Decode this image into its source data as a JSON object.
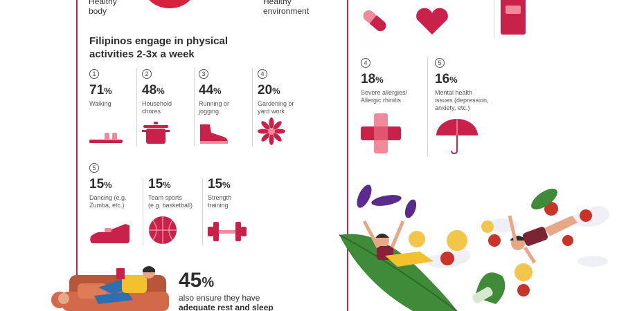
{
  "top": {
    "left_label_1": "Healthy",
    "left_label_2": "body",
    "right_label_1": "Healthy",
    "right_label_2": "environment"
  },
  "activities": {
    "title_line1": "Filipinos engage in physical",
    "title_line2": "activities 2-3x a week",
    "row1": [
      {
        "rank": "1",
        "value": "71",
        "pct": "%",
        "desc1": "Walking",
        "desc2": "",
        "icon": "sandal-icon"
      },
      {
        "rank": "2",
        "value": "48",
        "pct": "%",
        "desc1": "Household",
        "desc2": "chores",
        "icon": "cooking-pot-icon"
      },
      {
        "rank": "3",
        "value": "44",
        "pct": "%",
        "desc1": "Running or",
        "desc2": "jogging",
        "icon": "sneaker-icon"
      },
      {
        "rank": "4",
        "value": "20",
        "pct": "%",
        "desc1": "Gardening or",
        "desc2": "yard work",
        "icon": "flower-icon"
      }
    ],
    "row2": [
      {
        "rank": "5",
        "value": "15",
        "pct": "%",
        "desc1": "Dancing (e.g.",
        "desc2": "Zumba, etc.)",
        "icon": "dance-shoe-icon"
      },
      {
        "rank": "",
        "value": "15",
        "pct": "%",
        "desc1": "Team sports",
        "desc2": "(e.g. basketball)",
        "icon": "basketball-icon"
      },
      {
        "rank": "",
        "value": "15",
        "pct": "%",
        "desc1": "Strength",
        "desc2": "training",
        "icon": "dumbbell-icon"
      }
    ]
  },
  "rest": {
    "value": "45",
    "pct": "%",
    "line1": "also ensure they have",
    "line2": "adequate rest and sleep"
  },
  "conditions": [
    {
      "rank": "4",
      "value": "18",
      "pct": "%",
      "desc1": "Severe allergies/",
      "desc2": "Allergic rhinitis",
      "desc3": "",
      "icon": "bandage-cross-icon"
    },
    {
      "rank": "5",
      "value": "16",
      "pct": "%",
      "desc1": "Mental health",
      "desc2": "issues (depression,",
      "desc3": "anxiety, etc.)",
      "icon": "umbrella-icon"
    }
  ],
  "colors": {
    "accent": "#c8224a",
    "light_accent": "#f08a9b",
    "text": "#2d2d2d"
  }
}
